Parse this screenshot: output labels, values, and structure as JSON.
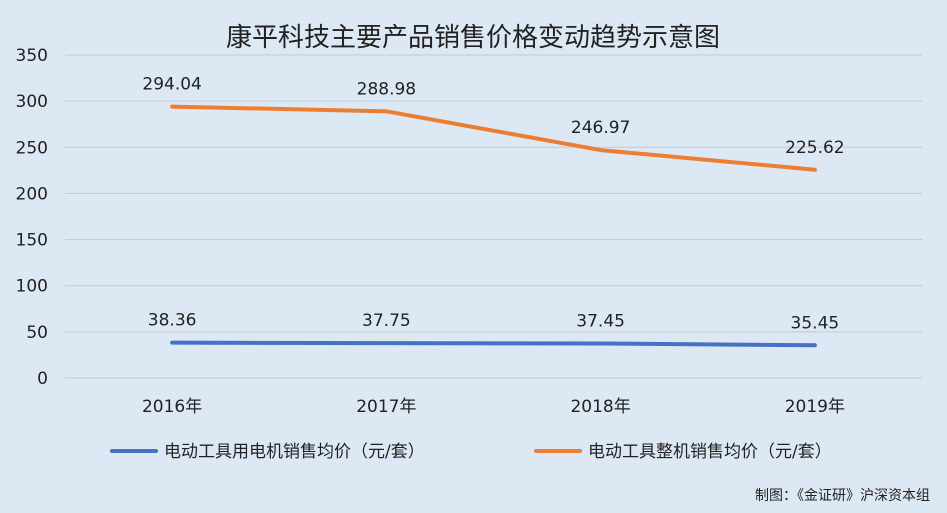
{
  "chart_data": {
    "type": "line",
    "title": "康平科技主要产品销售价格变动趋势示意图",
    "categories": [
      "2016年",
      "2017年",
      "2018年",
      "2019年"
    ],
    "ylim": [
      0,
      350
    ],
    "yticks": [
      0,
      50,
      100,
      150,
      200,
      250,
      300,
      350
    ],
    "grid": true,
    "legend_position": "bottom",
    "series": [
      {
        "name": "电动工具用电机销售均价（元/套）",
        "values": [
          38.36,
          37.75,
          37.45,
          35.45
        ],
        "labels": [
          "38.36",
          "37.75",
          "37.45",
          "35.45"
        ],
        "color": "#4472c4"
      },
      {
        "name": "电动工具整机销售均价（元/套）",
        "values": [
          294.04,
          288.98,
          246.97,
          225.62
        ],
        "labels": [
          "294.04",
          "288.98",
          "246.97",
          "225.62"
        ],
        "color": "#ed7d31"
      }
    ],
    "source": "制图：《金证研》沪深资本组"
  }
}
